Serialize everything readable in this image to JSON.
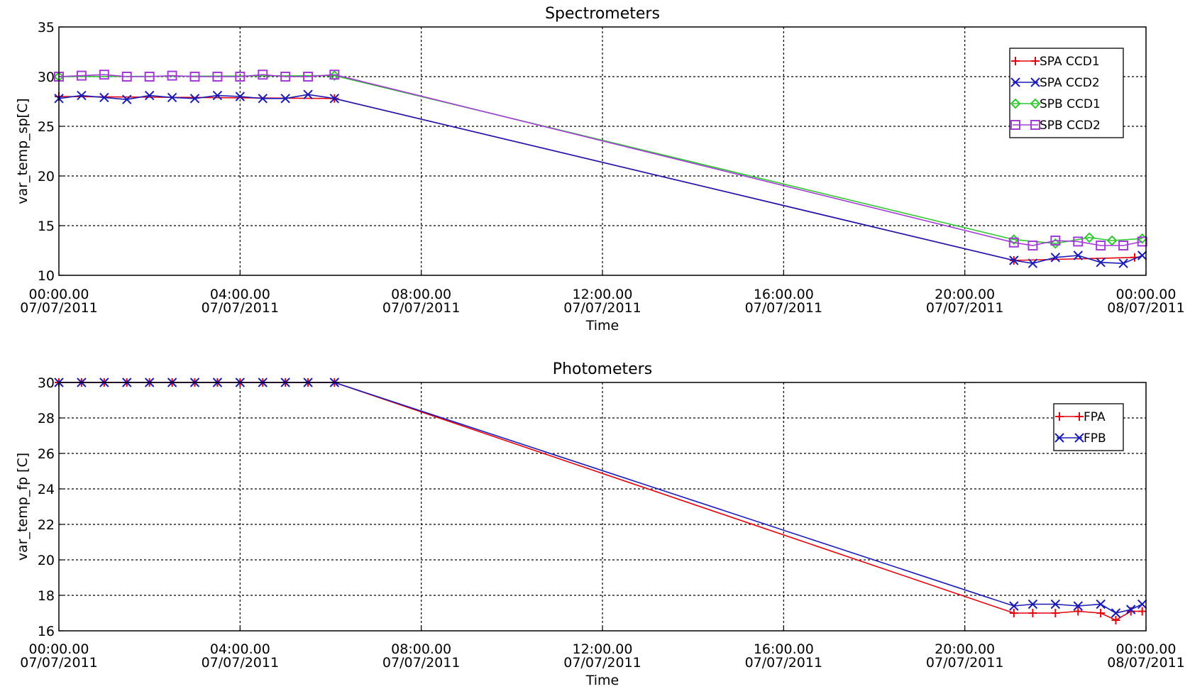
{
  "chart_data": [
    {
      "type": "line",
      "title": "Spectrometers",
      "xlabel": "Time",
      "ylabel": "var_temp_sp[C]",
      "xlim": [
        "2011-07-07 00:00",
        "2011-07-08 00:00"
      ],
      "ylim": [
        10,
        35
      ],
      "grid": true,
      "legend_position": "top-right",
      "x_ticks": [
        {
          "line1": "00:00.00",
          "line2": "07/07/2011"
        },
        {
          "line1": "04:00.00",
          "line2": "07/07/2011"
        },
        {
          "line1": "08:00.00",
          "line2": "07/07/2011"
        },
        {
          "line1": "12:00.00",
          "line2": "07/07/2011"
        },
        {
          "line1": "16:00.00",
          "line2": "07/07/2011"
        },
        {
          "line1": "20:00.00",
          "line2": "07/07/2011"
        },
        {
          "line1": "00:00.00",
          "line2": "08/07/2011"
        }
      ],
      "y_ticks": [
        "10",
        "15",
        "20",
        "25",
        "30",
        "35"
      ],
      "series": [
        {
          "name": "SPA CCD1",
          "color": "#e8000b",
          "marker": "plus",
          "x": [
            "2011-07-07 00:00",
            "2011-07-07 06:05",
            "2011-07-07 21:05",
            "2011-07-07 23:45"
          ],
          "y": [
            28.0,
            27.8,
            11.5,
            11.8
          ]
        },
        {
          "name": "SPA CCD2",
          "color": "#1a1ab8",
          "marker": "cross",
          "x": [
            "2011-07-07 00:00",
            "2011-07-07 00:30",
            "2011-07-07 01:00",
            "2011-07-07 01:30",
            "2011-07-07 02:00",
            "2011-07-07 02:30",
            "2011-07-07 03:00",
            "2011-07-07 03:30",
            "2011-07-07 04:00",
            "2011-07-07 04:30",
            "2011-07-07 05:00",
            "2011-07-07 05:30",
            "2011-07-07 06:05",
            "2011-07-07 21:05",
            "2011-07-07 21:30",
            "2011-07-07 22:00",
            "2011-07-07 22:30",
            "2011-07-07 23:00",
            "2011-07-07 23:30",
            "2011-07-07 23:55"
          ],
          "y": [
            27.8,
            28.1,
            27.9,
            27.7,
            28.1,
            27.9,
            27.8,
            28.1,
            28.0,
            27.8,
            27.8,
            28.2,
            27.8,
            11.5,
            11.2,
            11.8,
            12.0,
            11.3,
            11.2,
            12.0
          ]
        },
        {
          "name": "SPB CCD1",
          "color": "#2ec92e",
          "marker": "diamond",
          "x": [
            "2011-07-07 00:00",
            "2011-07-07 06:05",
            "2011-07-07 21:05",
            "2011-07-07 22:00",
            "2011-07-07 22:45",
            "2011-07-07 23:15",
            "2011-07-07 23:55"
          ],
          "y": [
            30.0,
            30.1,
            13.6,
            13.2,
            13.8,
            13.5,
            13.7
          ]
        },
        {
          "name": "SPB CCD2",
          "color": "#a43ad8",
          "marker": "square",
          "x": [
            "2011-07-07 00:00",
            "2011-07-07 00:30",
            "2011-07-07 01:00",
            "2011-07-07 01:30",
            "2011-07-07 02:00",
            "2011-07-07 02:30",
            "2011-07-07 03:00",
            "2011-07-07 03:30",
            "2011-07-07 04:00",
            "2011-07-07 04:30",
            "2011-07-07 05:00",
            "2011-07-07 05:30",
            "2011-07-07 06:05",
            "2011-07-07 21:05",
            "2011-07-07 21:30",
            "2011-07-07 22:00",
            "2011-07-07 22:30",
            "2011-07-07 23:00",
            "2011-07-07 23:30",
            "2011-07-07 23:55"
          ],
          "y": [
            30.0,
            30.1,
            30.2,
            30.0,
            30.0,
            30.1,
            30.0,
            30.0,
            30.0,
            30.2,
            30.0,
            30.0,
            30.2,
            13.3,
            13.0,
            13.5,
            13.4,
            13.0,
            13.0,
            13.4
          ]
        }
      ]
    },
    {
      "type": "line",
      "title": "Photometers",
      "xlabel": "Time",
      "ylabel": "var_temp_fp [C]",
      "xlim": [
        "2011-07-07 00:00",
        "2011-07-08 00:00"
      ],
      "ylim": [
        16,
        30
      ],
      "grid": true,
      "legend_position": "top-right",
      "x_ticks": [
        {
          "line1": "00:00.00",
          "line2": "07/07/2011"
        },
        {
          "line1": "04:00.00",
          "line2": "07/07/2011"
        },
        {
          "line1": "08:00.00",
          "line2": "07/07/2011"
        },
        {
          "line1": "12:00.00",
          "line2": "07/07/2011"
        },
        {
          "line1": "16:00.00",
          "line2": "07/07/2011"
        },
        {
          "line1": "20:00.00",
          "line2": "07/07/2011"
        },
        {
          "line1": "00:00.00",
          "line2": "08/07/2011"
        }
      ],
      "y_ticks": [
        "16",
        "18",
        "20",
        "22",
        "24",
        "26",
        "28",
        "30"
      ],
      "series": [
        {
          "name": "FPA",
          "color": "#e8000b",
          "marker": "plus",
          "x": [
            "2011-07-07 00:00",
            "2011-07-07 00:30",
            "2011-07-07 01:00",
            "2011-07-07 01:30",
            "2011-07-07 02:00",
            "2011-07-07 02:30",
            "2011-07-07 03:00",
            "2011-07-07 03:30",
            "2011-07-07 04:00",
            "2011-07-07 04:30",
            "2011-07-07 05:00",
            "2011-07-07 05:30",
            "2011-07-07 06:05",
            "2011-07-07 21:05",
            "2011-07-07 21:30",
            "2011-07-07 22:00",
            "2011-07-07 22:30",
            "2011-07-07 23:00",
            "2011-07-07 23:20",
            "2011-07-07 23:40",
            "2011-07-07 23:55"
          ],
          "y": [
            30.0,
            30.0,
            30.0,
            30.0,
            30.0,
            30.0,
            30.0,
            30.0,
            30.0,
            30.0,
            30.0,
            30.0,
            30.0,
            17.0,
            17.0,
            17.0,
            17.1,
            17.0,
            16.6,
            17.1,
            17.1
          ]
        },
        {
          "name": "FPB",
          "color": "#1a1ab8",
          "marker": "cross",
          "x": [
            "2011-07-07 00:00",
            "2011-07-07 00:30",
            "2011-07-07 01:00",
            "2011-07-07 01:30",
            "2011-07-07 02:00",
            "2011-07-07 02:30",
            "2011-07-07 03:00",
            "2011-07-07 03:30",
            "2011-07-07 04:00",
            "2011-07-07 04:30",
            "2011-07-07 05:00",
            "2011-07-07 05:30",
            "2011-07-07 06:05",
            "2011-07-07 21:05",
            "2011-07-07 21:30",
            "2011-07-07 22:00",
            "2011-07-07 22:30",
            "2011-07-07 23:00",
            "2011-07-07 23:20",
            "2011-07-07 23:40",
            "2011-07-07 23:55"
          ],
          "y": [
            30.0,
            30.0,
            30.0,
            30.0,
            30.0,
            30.0,
            30.0,
            30.0,
            30.0,
            30.0,
            30.0,
            30.0,
            30.0,
            17.4,
            17.5,
            17.5,
            17.4,
            17.5,
            17.0,
            17.2,
            17.5
          ]
        }
      ]
    }
  ]
}
